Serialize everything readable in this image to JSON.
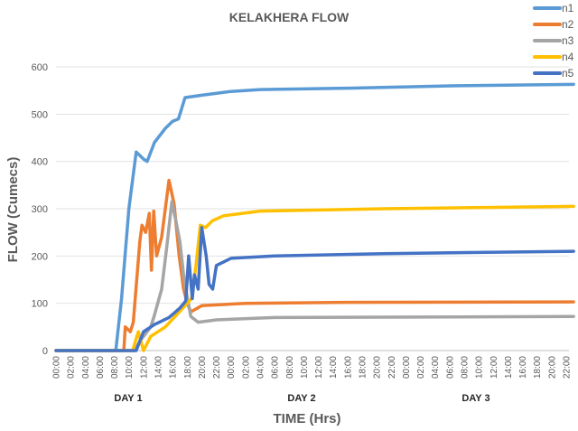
{
  "chart_data": {
    "type": "line",
    "title": "KELAKHERA FLOW",
    "xlabel": "TIME (Hrs)",
    "ylabel": "FLOW (Cumecs)",
    "ylim": [
      0,
      600
    ],
    "yticks": [
      0,
      100,
      200,
      300,
      400,
      500,
      600
    ],
    "xlim_hours": [
      0,
      70
    ],
    "xtick_labels": [
      "00:00",
      "02:00",
      "04:00",
      "06:00",
      "08:00",
      "10:00",
      "12:00",
      "14:00",
      "16:00",
      "18:00",
      "20:00",
      "22:00",
      "00:00",
      "02:00",
      "04:00",
      "06:00",
      "08:00",
      "10:00",
      "12:00",
      "14:00",
      "16:00",
      "18:00",
      "20:00",
      "22:00",
      "00:00",
      "02:00",
      "04:00",
      "06:00",
      "08:00",
      "10:00",
      "12:00",
      "14:00",
      "16:00",
      "18:00",
      "20:00",
      "22:00"
    ],
    "day_labels": [
      "DAY 1",
      "DAY 2",
      "DAY 3"
    ],
    "grid": true,
    "legend": "top-right",
    "series": [
      {
        "name": "n1",
        "color": "#5B9BD5",
        "points": [
          [
            0,
            0
          ],
          [
            8.2,
            0
          ],
          [
            9,
            110
          ],
          [
            10,
            300
          ],
          [
            11,
            420
          ],
          [
            12,
            405
          ],
          [
            12.5,
            400
          ],
          [
            13.5,
            440
          ],
          [
            15,
            470
          ],
          [
            16,
            485
          ],
          [
            16.8,
            490
          ],
          [
            17.7,
            535
          ],
          [
            20,
            540
          ],
          [
            24,
            548
          ],
          [
            28,
            552
          ],
          [
            40,
            555
          ],
          [
            55,
            560
          ],
          [
            71,
            563
          ]
        ]
      },
      {
        "name": "n2",
        "color": "#ED7D31",
        "points": [
          [
            0,
            0
          ],
          [
            9.3,
            0
          ],
          [
            9.5,
            50
          ],
          [
            10.2,
            40
          ],
          [
            10.6,
            60
          ],
          [
            11.5,
            230
          ],
          [
            11.8,
            265
          ],
          [
            12.3,
            250
          ],
          [
            12.8,
            290
          ],
          [
            13.1,
            170
          ],
          [
            13.4,
            295
          ],
          [
            13.8,
            200
          ],
          [
            14.5,
            240
          ],
          [
            15.5,
            360
          ],
          [
            16.2,
            310
          ],
          [
            16.9,
            200
          ],
          [
            17.5,
            130
          ],
          [
            18,
            100
          ],
          [
            18.5,
            82
          ],
          [
            20,
            95
          ],
          [
            26,
            100
          ],
          [
            40,
            102
          ],
          [
            71,
            103
          ]
        ]
      },
      {
        "name": "n3",
        "color": "#A5A5A5",
        "points": [
          [
            0,
            0
          ],
          [
            10.8,
            0
          ],
          [
            11.5,
            20
          ],
          [
            12,
            30
          ],
          [
            13,
            50
          ],
          [
            13.5,
            75
          ],
          [
            14.5,
            130
          ],
          [
            15.2,
            220
          ],
          [
            15.9,
            315
          ],
          [
            16.5,
            270
          ],
          [
            17,
            230
          ],
          [
            17.5,
            160
          ],
          [
            17.8,
            130
          ],
          [
            18.5,
            72
          ],
          [
            19.5,
            60
          ],
          [
            22,
            65
          ],
          [
            30,
            70
          ],
          [
            71,
            72
          ]
        ]
      },
      {
        "name": "n4",
        "color": "#FFC000",
        "points": [
          [
            0,
            0
          ],
          [
            10.5,
            0
          ],
          [
            11.3,
            40
          ],
          [
            12,
            0
          ],
          [
            13,
            30
          ],
          [
            15,
            50
          ],
          [
            16.5,
            75
          ],
          [
            18,
            100
          ],
          [
            18.6,
            110
          ],
          [
            19.2,
            180
          ],
          [
            19.8,
            265
          ],
          [
            20.5,
            260
          ],
          [
            21.5,
            275
          ],
          [
            23,
            285
          ],
          [
            28,
            295
          ],
          [
            45,
            300
          ],
          [
            71,
            305
          ]
        ]
      },
      {
        "name": "n5",
        "color": "#4472C4",
        "points": [
          [
            0,
            0
          ],
          [
            11,
            0
          ],
          [
            12,
            40
          ],
          [
            13.5,
            55
          ],
          [
            15.5,
            70
          ],
          [
            17,
            90
          ],
          [
            17.8,
            105
          ],
          [
            18.2,
            200
          ],
          [
            18.7,
            110
          ],
          [
            19,
            160
          ],
          [
            19.5,
            130
          ],
          [
            20,
            260
          ],
          [
            20.6,
            200
          ],
          [
            21,
            140
          ],
          [
            21.5,
            130
          ],
          [
            22,
            180
          ],
          [
            24,
            195
          ],
          [
            30,
            200
          ],
          [
            45,
            205
          ],
          [
            71,
            210
          ]
        ]
      }
    ]
  }
}
